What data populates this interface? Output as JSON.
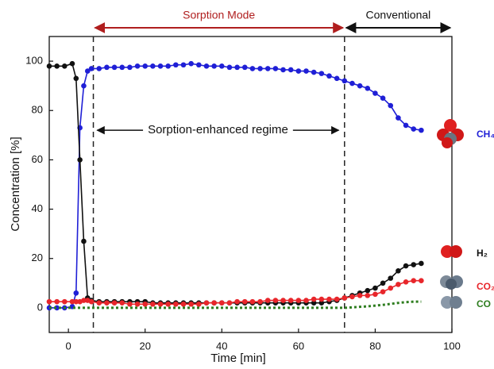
{
  "chart_data": {
    "type": "line",
    "xlabel": "Time [min]",
    "ylabel": "Concentration [%]",
    "xlim": [
      -5,
      100
    ],
    "ylim": [
      -10,
      110
    ],
    "xticks": [
      0,
      20,
      40,
      60,
      80,
      100
    ],
    "yticks": [
      0,
      20,
      40,
      60,
      80,
      100
    ],
    "vlines": [
      6.5,
      72
    ],
    "regions": [
      {
        "label": "Sorption Mode",
        "from": 6.5,
        "to": 72,
        "color": "#b01e1e"
      },
      {
        "label": "Conventional",
        "from": 72,
        "to": 100,
        "color": "#111111"
      }
    ],
    "annotation": {
      "text": "Sorption-enhanced regime",
      "from": 7.5,
      "to": 70.5,
      "y": 72
    },
    "x": [
      -5,
      -3,
      -1,
      1,
      2,
      3,
      4,
      5,
      6,
      8,
      10,
      12,
      14,
      16,
      18,
      20,
      22,
      24,
      26,
      28,
      30,
      32,
      34,
      36,
      38,
      40,
      42,
      44,
      46,
      48,
      50,
      52,
      54,
      56,
      58,
      60,
      62,
      64,
      66,
      68,
      70,
      72,
      74,
      76,
      78,
      80,
      82,
      84,
      86,
      88,
      90,
      92
    ],
    "series": [
      {
        "name": "CH₄",
        "color": "#1f1fd6",
        "markers": true,
        "linestyle": "solid",
        "values": [
          0,
          0,
          0,
          0.5,
          6,
          73,
          90,
          96,
          97,
          97,
          97.5,
          97.5,
          97.5,
          97.5,
          98,
          98,
          98,
          98,
          98,
          98.5,
          98.5,
          99,
          98.5,
          98,
          98,
          98,
          97.5,
          97.5,
          97.5,
          97,
          97,
          97,
          97,
          96.5,
          96.5,
          96,
          96,
          95.5,
          95,
          94,
          93,
          92,
          91,
          90,
          89,
          87,
          85,
          82,
          77,
          74,
          72.5,
          72
        ]
      },
      {
        "name": "H₂",
        "color": "#111111",
        "markers": true,
        "linestyle": "solid",
        "values": [
          98,
          98,
          98,
          99,
          93,
          60,
          27,
          4,
          3,
          2.5,
          2.5,
          2.5,
          2.5,
          2.5,
          2.5,
          2.5,
          2,
          2,
          2,
          2,
          2,
          2,
          2,
          2,
          2,
          2,
          2,
          2,
          2,
          2,
          2,
          2,
          2,
          2,
          2,
          2,
          2,
          2,
          2,
          2.5,
          3,
          4,
          5,
          6,
          7,
          8,
          10,
          12,
          15,
          17,
          17.5,
          18
        ]
      },
      {
        "name": "CO₂",
        "color": "#e8262b",
        "markers": true,
        "linestyle": "solid",
        "values": [
          2.5,
          2.5,
          2.5,
          2.5,
          2.5,
          2.5,
          3,
          3,
          2.5,
          2,
          2,
          2,
          2,
          1.5,
          1.5,
          1.5,
          1.5,
          1.5,
          1.5,
          1.5,
          1.5,
          1.5,
          1.5,
          2,
          2,
          2,
          2,
          2.5,
          2.5,
          2.5,
          2.5,
          3,
          3,
          3,
          3,
          3,
          3,
          3.5,
          3.5,
          3.5,
          3.5,
          4,
          4.5,
          5,
          5,
          5.5,
          6.5,
          8,
          9.5,
          10.5,
          11,
          11
        ]
      },
      {
        "name": "CO",
        "color": "#2e7d1f",
        "markers": false,
        "linestyle": "dotted",
        "values": [
          0,
          0,
          0,
          0,
          0,
          0,
          0,
          0,
          0,
          0,
          0,
          0,
          0,
          0,
          0,
          0,
          0,
          0,
          0,
          0,
          0,
          0,
          0,
          0,
          0,
          0,
          0,
          0,
          0,
          0,
          0,
          0,
          0,
          0,
          0,
          0,
          0,
          0,
          0,
          0,
          0,
          0,
          0.2,
          0.4,
          0.6,
          0.9,
          1.2,
          1.6,
          2,
          2.3,
          2.5,
          2.5
        ]
      }
    ]
  }
}
